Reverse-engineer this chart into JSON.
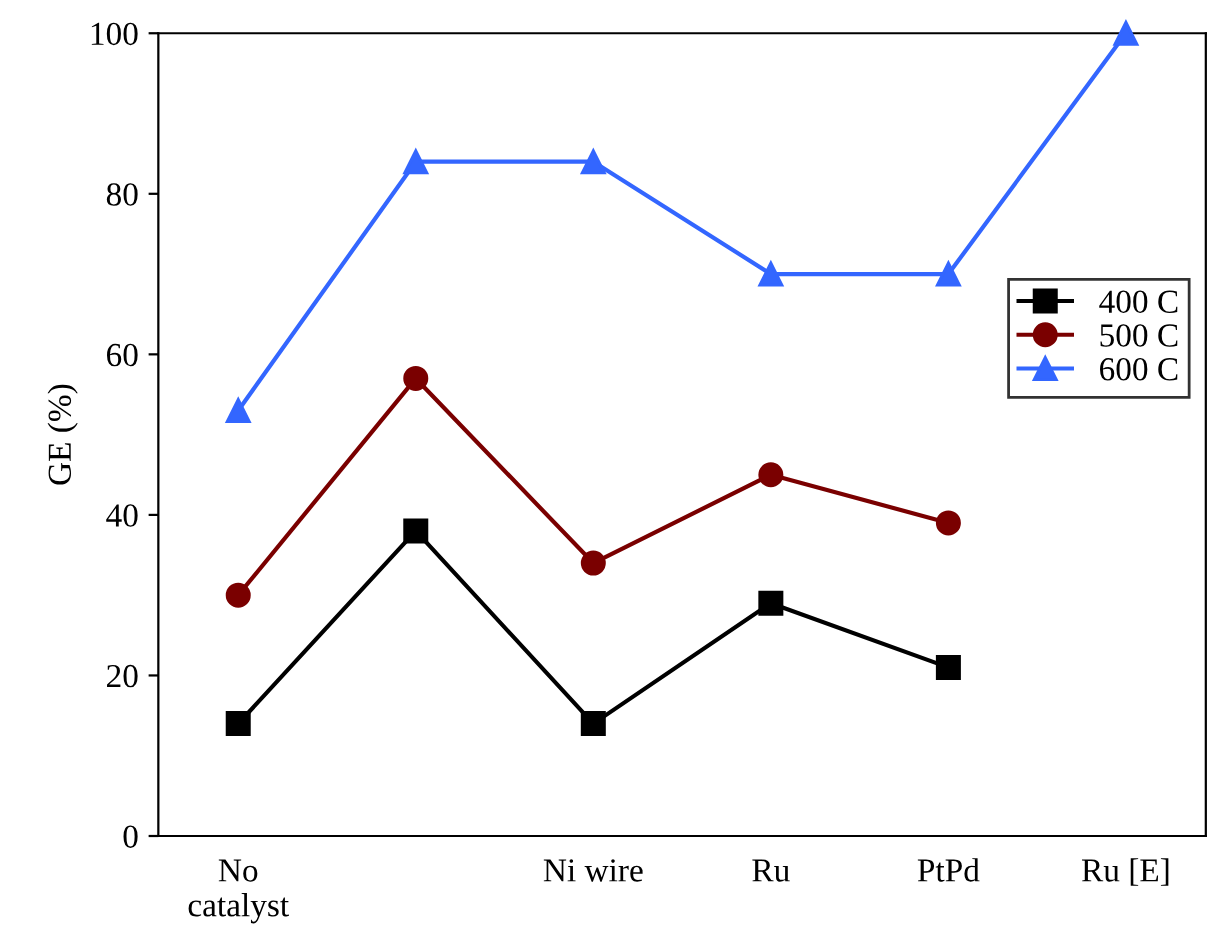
{
  "chart_data": {
    "type": "line",
    "ylabel": "GE (%)",
    "categories": [
      "No\ncatalyst",
      null,
      "Ni wire",
      "Ru",
      "PtPd",
      "Ru [E]"
    ],
    "ylim": [
      0,
      100
    ],
    "yticks": [
      0,
      20,
      40,
      60,
      80,
      100
    ],
    "grid": false,
    "legend": "right",
    "series": [
      {
        "name": "400 C",
        "color": "#000000",
        "marker": "square",
        "values": [
          14,
          38,
          14,
          29,
          21,
          null
        ]
      },
      {
        "name": "500 C",
        "color": "#7a0000",
        "marker": "circle",
        "values": [
          30,
          57,
          34,
          45,
          39,
          null
        ]
      },
      {
        "name": "600 C",
        "color": "#3366ff",
        "marker": "triangle",
        "values": [
          53,
          84,
          84,
          70,
          70,
          100
        ]
      }
    ]
  }
}
